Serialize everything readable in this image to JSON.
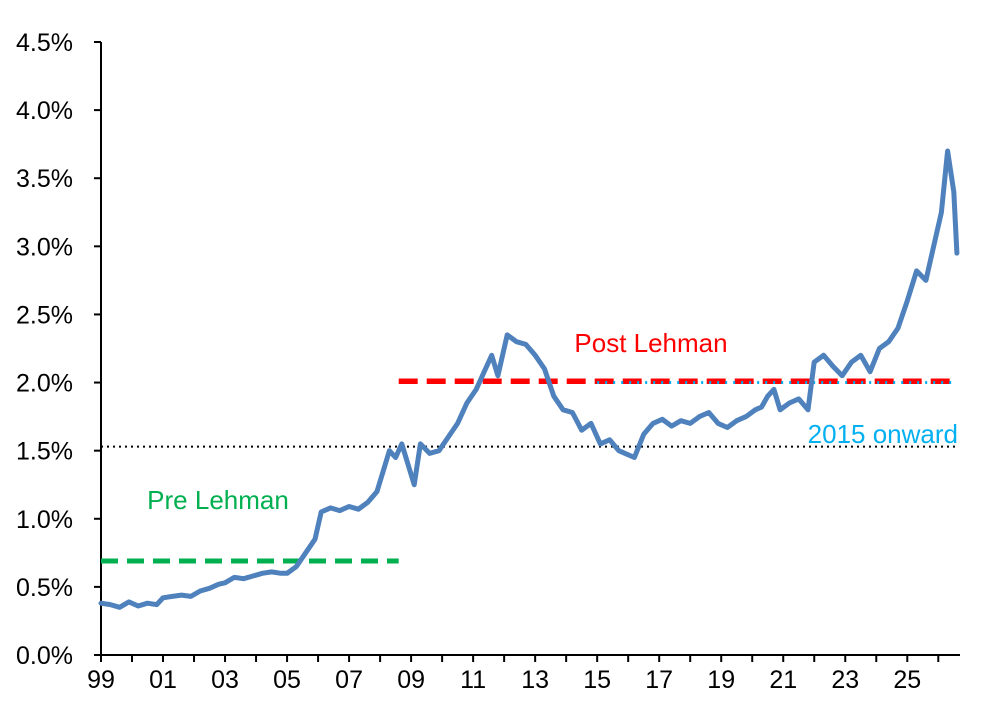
{
  "chart_data": {
    "type": "line",
    "title": "",
    "xlabel": "",
    "ylabel": "",
    "xlim": [
      1999,
      2026.7
    ],
    "ylim": [
      0,
      4.5
    ],
    "y_tick_values": [
      0,
      0.5,
      1.0,
      1.5,
      2.0,
      2.5,
      3.0,
      3.5,
      4.0,
      4.5
    ],
    "y_tick_labels": [
      "0.0%",
      "0.5%",
      "1.0%",
      "1.5%",
      "2.0%",
      "2.5%",
      "3.0%",
      "3.5%",
      "4.0%",
      "4.5%"
    ],
    "x_tick_values": [
      1999,
      2001,
      2003,
      2005,
      2007,
      2009,
      2011,
      2013,
      2015,
      2017,
      2019,
      2021,
      2023,
      2025
    ],
    "x_tick_labels": [
      "99",
      "01",
      "03",
      "05",
      "07",
      "09",
      "11",
      "13",
      "15",
      "17",
      "19",
      "21",
      "23",
      "25"
    ],
    "grid": false,
    "series": [
      {
        "color": "#4f81bd",
        "x": [
          1999.0,
          1999.3,
          1999.6,
          1999.9,
          2000.2,
          2000.5,
          2000.8,
          2001.0,
          2001.3,
          2001.6,
          2001.9,
          2002.2,
          2002.5,
          2002.8,
          2003.0,
          2003.3,
          2003.6,
          2003.9,
          2004.2,
          2004.5,
          2004.8,
          2005.0,
          2005.3,
          2005.6,
          2005.9,
          2006.1,
          2006.4,
          2006.7,
          2007.0,
          2007.3,
          2007.6,
          2007.9,
          2008.1,
          2008.3,
          2008.5,
          2008.7,
          2008.9,
          2009.1,
          2009.3,
          2009.6,
          2009.9,
          2010.2,
          2010.5,
          2010.8,
          2011.1,
          2011.4,
          2011.6,
          2011.8,
          2012.1,
          2012.4,
          2012.7,
          2013.0,
          2013.3,
          2013.6,
          2013.9,
          2014.2,
          2014.5,
          2014.8,
          2015.1,
          2015.4,
          2015.7,
          2015.9,
          2016.2,
          2016.5,
          2016.8,
          2017.1,
          2017.4,
          2017.7,
          2018.0,
          2018.3,
          2018.6,
          2018.9,
          2019.2,
          2019.5,
          2019.8,
          2020.1,
          2020.3,
          2020.5,
          2020.7,
          2020.9,
          2021.2,
          2021.5,
          2021.8,
          2022.0,
          2022.3,
          2022.6,
          2022.9,
          2023.2,
          2023.5,
          2023.8,
          2024.1,
          2024.4,
          2024.7,
          2025.0,
          2025.3,
          2025.6,
          2025.9,
          2026.1,
          2026.3,
          2026.5,
          2026.6
        ],
        "y": [
          0.38,
          0.37,
          0.35,
          0.39,
          0.36,
          0.38,
          0.37,
          0.42,
          0.43,
          0.44,
          0.43,
          0.47,
          0.49,
          0.52,
          0.53,
          0.57,
          0.56,
          0.58,
          0.6,
          0.61,
          0.6,
          0.6,
          0.65,
          0.75,
          0.85,
          1.05,
          1.08,
          1.06,
          1.09,
          1.07,
          1.12,
          1.2,
          1.35,
          1.5,
          1.45,
          1.55,
          1.4,
          1.25,
          1.55,
          1.48,
          1.5,
          1.6,
          1.7,
          1.85,
          1.95,
          2.1,
          2.2,
          2.05,
          2.35,
          2.3,
          2.28,
          2.2,
          2.1,
          1.9,
          1.8,
          1.78,
          1.65,
          1.7,
          1.55,
          1.58,
          1.5,
          1.48,
          1.45,
          1.62,
          1.7,
          1.73,
          1.68,
          1.72,
          1.7,
          1.75,
          1.78,
          1.7,
          1.67,
          1.72,
          1.75,
          1.8,
          1.82,
          1.9,
          1.95,
          1.8,
          1.85,
          1.88,
          1.8,
          2.15,
          2.2,
          2.12,
          2.05,
          2.15,
          2.2,
          2.08,
          2.25,
          2.3,
          2.4,
          2.6,
          2.82,
          2.75,
          3.05,
          3.25,
          3.7,
          3.4,
          2.95
        ]
      }
    ],
    "reference_lines": [
      {
        "id": "pre-lehman",
        "label": "Pre Lehman",
        "y": 0.69,
        "x_start": 1999,
        "x_end": 2008.6,
        "color": "#00b050",
        "style": "dashed"
      },
      {
        "id": "post-lehman",
        "label": "Post Lehman",
        "y": 2.01,
        "x_start": 2008.6,
        "x_end": 2026.6,
        "color": "#ff0000",
        "style": "dashed"
      },
      {
        "id": "since-2015",
        "label": "2015 onward",
        "y": 2.0,
        "x_start": 2015.0,
        "x_end": 2026.6,
        "color": "#00b0f0",
        "style": "dotted"
      },
      {
        "id": "full-average",
        "label": "",
        "y": 1.53,
        "x_start": 1999,
        "x_end": 2026.6,
        "color": "#000000",
        "style": "dotted"
      }
    ]
  }
}
